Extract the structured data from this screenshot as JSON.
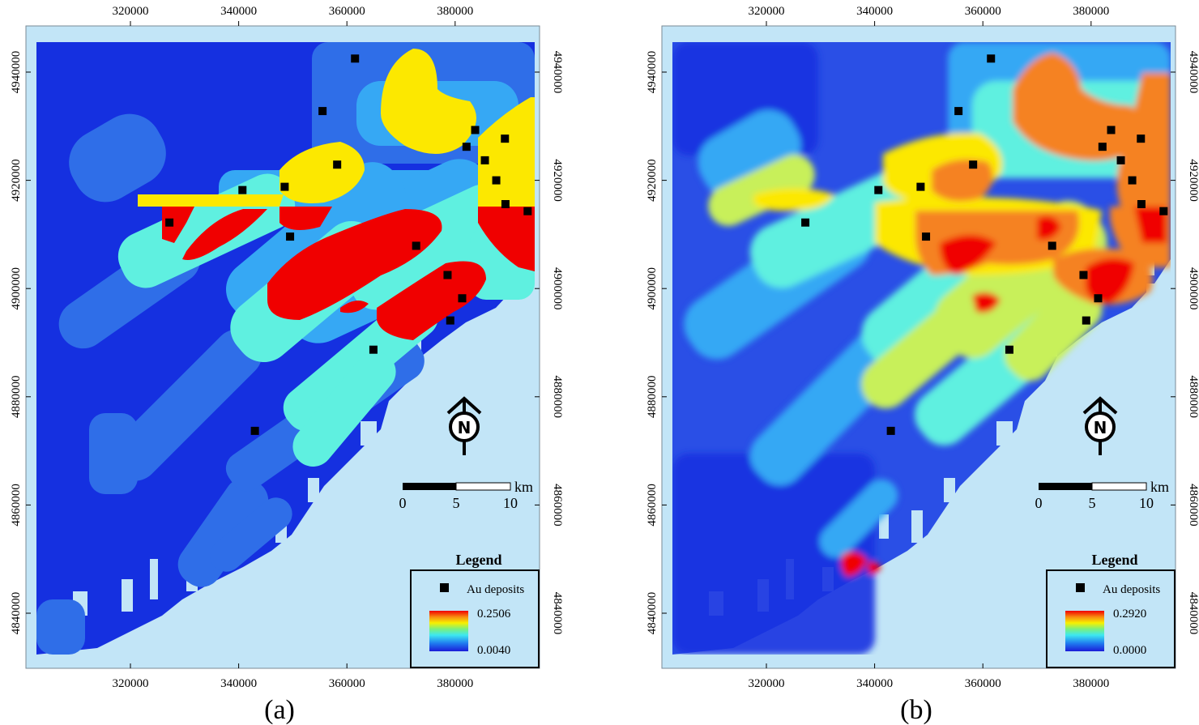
{
  "colors": {
    "ocean": "#c2e5f7",
    "deep_blue": "#1530e0",
    "blue": "#2f6ee8",
    "sky": "#36a8f4",
    "cyan": "#5ff0e0",
    "yellow": "#fce800",
    "orange": "#f58220",
    "red": "#f00000",
    "deposit": "#000000"
  },
  "x_ticks": [
    "320000",
    "340000",
    "360000",
    "380000"
  ],
  "y_ticks": [
    "4940000",
    "4920000",
    "4900000",
    "4880000",
    "4860000",
    "4840000"
  ],
  "panels": [
    {
      "id": "a",
      "caption": "(a)",
      "legend": {
        "title": "Legend",
        "deposit_label": "Au deposits",
        "max": "0.2506",
        "min": "0.0040"
      },
      "scale": {
        "unit": "km",
        "labels": [
          "0",
          "5",
          "10"
        ]
      },
      "north_label": "N"
    },
    {
      "id": "b",
      "caption": "(b)",
      "legend": {
        "title": "Legend",
        "deposit_label": "Au deposits",
        "max": "0.2920",
        "min": "0.0000"
      },
      "scale": {
        "unit": "km",
        "labels": [
          "0",
          "5",
          "10"
        ]
      },
      "north_label": "N"
    }
  ],
  "deposits": [
    [
      361.5,
      4942.5
    ],
    [
      355.5,
      4932.8
    ],
    [
      383.7,
      4929.3
    ],
    [
      389.2,
      4927.7
    ],
    [
      382.1,
      4926.2
    ],
    [
      385.5,
      4923.7
    ],
    [
      358.2,
      4922.9
    ],
    [
      387.6,
      4920.0
    ],
    [
      348.5,
      4918.8
    ],
    [
      340.7,
      4918.2
    ],
    [
      389.3,
      4915.6
    ],
    [
      393.4,
      4914.3
    ],
    [
      327.2,
      4912.2
    ],
    [
      349.5,
      4909.6
    ],
    [
      372.8,
      4907.9
    ],
    [
      378.6,
      4902.5
    ],
    [
      381.3,
      4898.2
    ],
    [
      379.1,
      4894.1
    ],
    [
      364.9,
      4888.7
    ],
    [
      343.0,
      4873.7
    ]
  ]
}
